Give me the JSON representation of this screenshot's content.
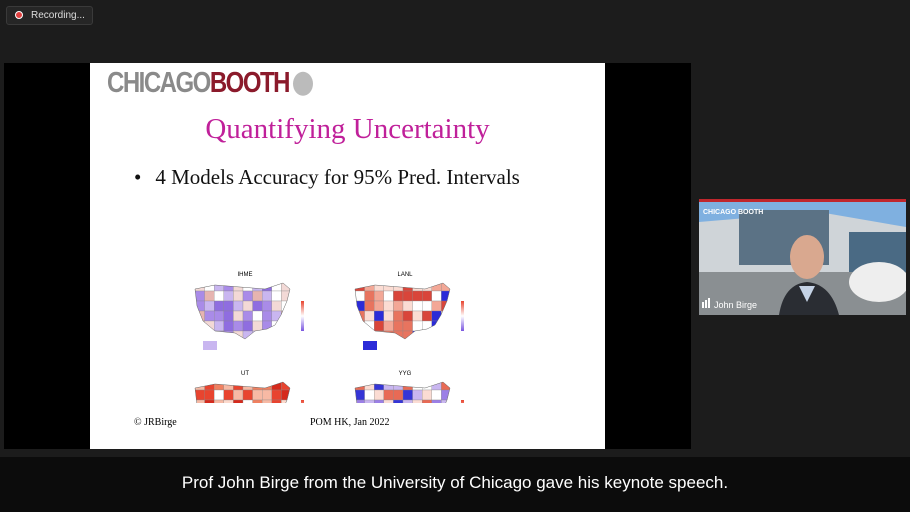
{
  "recording": {
    "label": "Recording..."
  },
  "slide": {
    "logo": {
      "left": "CHICAGO",
      "right": "BOOTH"
    },
    "title": "Quantifying Uncertainty",
    "bullet": "4 Models Accuracy for 95% Pred. Intervals",
    "maps": [
      {
        "title": "IHME"
      },
      {
        "title": "LANL"
      },
      {
        "title": "UT"
      },
      {
        "title": "YYG"
      }
    ],
    "footer": {
      "left": "© JRBirge",
      "center": "POM HK, Jan 2022"
    }
  },
  "participant": {
    "logo": "CHICAGO BOOTH",
    "name": "John Birge"
  },
  "caption": "Prof John Birge from the University of Chicago gave his keynote speech."
}
